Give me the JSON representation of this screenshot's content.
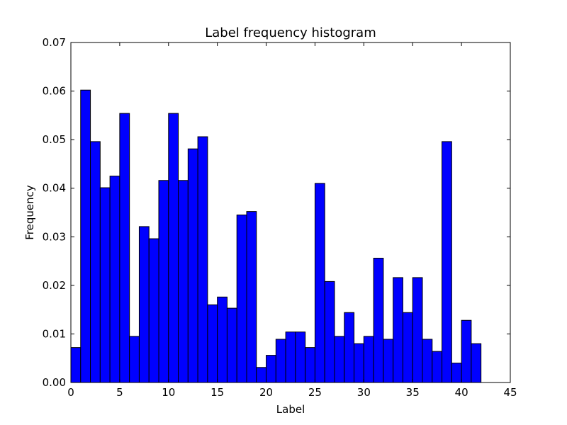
{
  "chart_data": {
    "type": "bar",
    "title": "Label frequency histogram",
    "xlabel": "Label",
    "ylabel": "Frequency",
    "xlim": [
      0,
      45
    ],
    "ylim": [
      0,
      0.07
    ],
    "xticks": [
      "0",
      "5",
      "10",
      "15",
      "20",
      "25",
      "30",
      "35",
      "40",
      "45"
    ],
    "yticks": [
      "0.00",
      "0.01",
      "0.02",
      "0.03",
      "0.04",
      "0.05",
      "0.06",
      "0.07"
    ],
    "bin_width": 1,
    "bins": [
      0,
      1,
      2,
      3,
      4,
      5,
      6,
      7,
      8,
      9,
      10,
      11,
      12,
      13,
      14,
      15,
      16,
      17,
      18,
      19,
      20,
      21,
      22,
      23,
      24,
      25,
      26,
      27,
      28,
      29,
      30,
      31,
      32,
      33,
      34,
      35,
      36,
      37,
      38,
      39,
      40,
      41
    ],
    "values": [
      0.0072,
      0.0602,
      0.0496,
      0.0401,
      0.0425,
      0.0554,
      0.0095,
      0.0321,
      0.0296,
      0.0416,
      0.0554,
      0.0416,
      0.0481,
      0.0506,
      0.016,
      0.0176,
      0.0153,
      0.0345,
      0.0352,
      0.0031,
      0.0056,
      0.0089,
      0.0104,
      0.0104,
      0.0072,
      0.041,
      0.0208,
      0.0095,
      0.0144,
      0.008,
      0.0095,
      0.0256,
      0.0089,
      0.0216,
      0.0144,
      0.0216,
      0.0089,
      0.0064,
      0.0496,
      0.004,
      0.0128,
      0.008
    ],
    "bar_color": "#0000ff",
    "grid": false
  }
}
